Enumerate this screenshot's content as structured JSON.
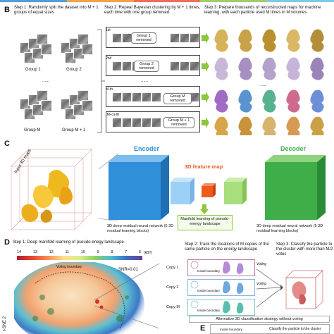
{
  "colors": {
    "encoder": "#2f8fd8",
    "decoder": "#3fae49",
    "feature_map": "#ef5a1c",
    "arrow_green": "#8dc63f",
    "top_strip": [
      "#5b9bd5",
      "#f4a24c",
      "#ef6f5c",
      "#9fcf6b",
      "#7ecbe8"
    ]
  },
  "panel_b": {
    "letter": "B",
    "step1": "Step 1: Randomly split the dataset into M + 1 groups of equal sizes",
    "step2": "Step 2: Repeat Bayesian clustering by M + 1 times, each time with one group removed",
    "step3": "Step 3: Prepare thousands of reconstructed maps for machine learning, with each particle used M times in M volumes",
    "groups": [
      "Group 1",
      "Group 2",
      "Group M",
      "Group M + 1"
    ],
    "ellipsis": "......",
    "runs": [
      {
        "index": "1st",
        "removed": "Group 1 removed"
      },
      {
        "index": "2nd",
        "removed": "Group 2 removed"
      },
      {
        "index": "M-th",
        "removed": "Group M removed"
      },
      {
        "index": "(M+1)-th",
        "removed": "Group M + 1 removed"
      }
    ]
  },
  "panel_c": {
    "letter": "C",
    "input_label": "Input 3D maps",
    "encoder": "Encoder",
    "decoder": "Decoder",
    "feature_map": "3D feature map",
    "encoder_desc": "3D deep residual neural network (6 3D residual learning blocks)",
    "decoder_desc": "3D deep residual neural network (5 3D residual learning blocks)",
    "manifold": "Manifold learning of pseudo-energy landscape"
  },
  "panel_d": {
    "letter": "D",
    "step1": "Step 1: Deep manifold learning of pseudo-enegy landscape",
    "step2": "Step 2: Track the locations of M copies of the same particle on the energy landscape",
    "step3": "Step 3: Classify the particle to the cluster with more than M/2 votes",
    "colorbar_ticks": [
      "14",
      "13",
      "12",
      "11",
      "10",
      "9",
      "8",
      "7",
      "6"
    ],
    "colorbar_unit": "(kBT)",
    "snr": "SNR=0.01",
    "voting_boundary": "Voting boundary",
    "axis_label": "t-SNE 2",
    "copies": [
      "Copy 1",
      "Copy 2",
      "Copy M"
    ],
    "inside_boundary": "Inside boundary",
    "voting": "Voting"
  },
  "panel_e": {
    "letter": "E",
    "title": "Alternative 3D classification strategy without voting",
    "inside_boundary": "Inside boundary",
    "classify": "Classify the particle to the cluster"
  }
}
